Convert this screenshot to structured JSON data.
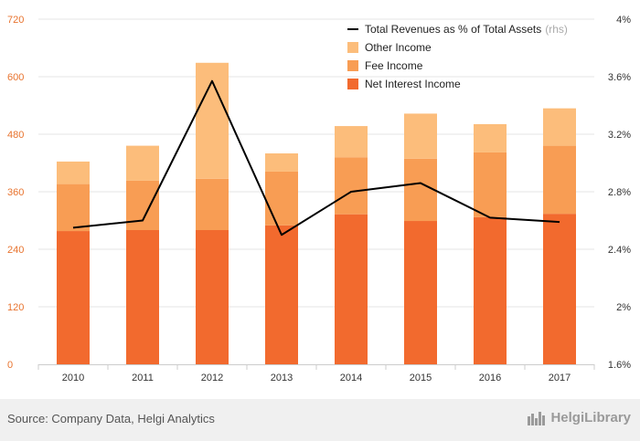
{
  "chart_data": {
    "type": "bar",
    "categories": [
      "2010",
      "2011",
      "2012",
      "2013",
      "2014",
      "2015",
      "2016",
      "2017"
    ],
    "series": [
      {
        "name": "Net Interest Income",
        "values": [
          278,
          280,
          280,
          290,
          313,
          299,
          307,
          314
        ],
        "color": "#f26a2e"
      },
      {
        "name": "Fee Income",
        "values": [
          98,
          103,
          107,
          112,
          119,
          130,
          135,
          142
        ],
        "color": "#f89d54"
      },
      {
        "name": "Other Income",
        "values": [
          47,
          73,
          242,
          38,
          65,
          94,
          59,
          78
        ],
        "color": "#fcbd7b"
      }
    ],
    "line": {
      "name": "Total Revenues as % of Total Assets",
      "note": "(rhs)",
      "values": [
        2.55,
        2.6,
        3.57,
        2.5,
        2.8,
        2.86,
        2.62,
        2.59
      ],
      "color": "#000000"
    },
    "ylim": [
      0,
      720
    ],
    "yticks": [
      "0",
      "120",
      "240",
      "360",
      "480",
      "600",
      "720"
    ],
    "y2lim": [
      1.6,
      4.0
    ],
    "y2ticks": [
      "1.6%",
      "2%",
      "2.4%",
      "2.8%",
      "3.2%",
      "3.6%",
      "4%"
    ],
    "legend_position": "top-center",
    "grid": "horizontal"
  },
  "legend": {
    "line_label": "Total Revenues as % of Total Assets",
    "line_note": "(rhs)",
    "other_label": "Other Income",
    "fee_label": "Fee Income",
    "nii_label": "Net Interest Income"
  },
  "footer": {
    "source": "Source: Company Data, Helgi Analytics",
    "brand": "HelgiLibrary"
  },
  "colors": {
    "left_axis": "#e8732e",
    "right_axis": "#333333",
    "grid": "#e6e6e6",
    "footer_bg": "#f0f0f0"
  }
}
